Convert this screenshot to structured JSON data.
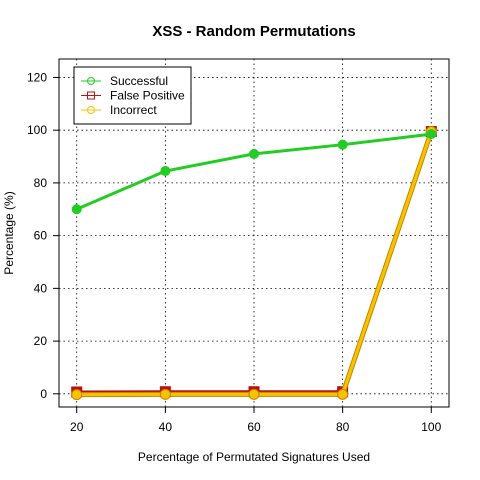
{
  "chart_data": {
    "type": "line",
    "title": "XSS - Random Permutations",
    "xlabel": "Percentage of Permutated Signatures Used",
    "ylabel": "Percentage (%)",
    "x": [
      20,
      40,
      60,
      80,
      100
    ],
    "xticks": [
      20,
      40,
      60,
      80,
      100
    ],
    "yticks": [
      0,
      20,
      40,
      60,
      80,
      100,
      120
    ],
    "xlim": [
      16,
      104
    ],
    "ylim": [
      -5,
      127
    ],
    "grid": true,
    "legend_position": "top-left",
    "series": [
      {
        "name": "Successful",
        "values": [
          70,
          84.5,
          91,
          94.5,
          98.5
        ],
        "color": "#22cc22",
        "marker": "circle"
      },
      {
        "name": "False Positive",
        "values": [
          0.7,
          0.8,
          0.8,
          0.8,
          99.5
        ],
        "color": "#bb1111",
        "marker": "square"
      },
      {
        "name": "Incorrect",
        "values": [
          -0.3,
          -0.2,
          -0.2,
          -0.2,
          99.5
        ],
        "color": "#f5c400",
        "marker": "circle"
      }
    ]
  }
}
